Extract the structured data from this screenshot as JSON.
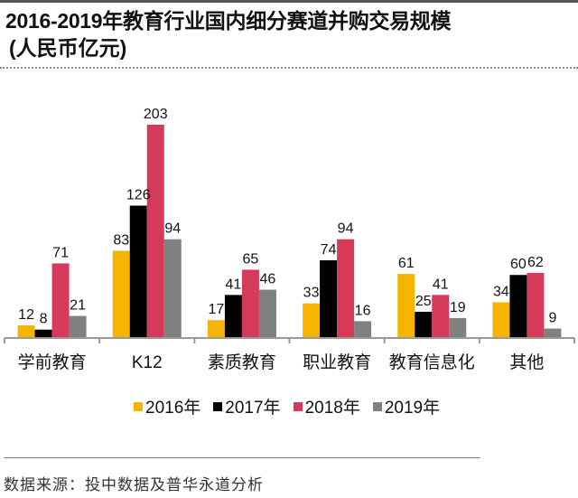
{
  "header": {
    "title": "2016-2019年教育行业国内细分赛道并购交易规模",
    "subtitle": "(人民币亿元)"
  },
  "chart_data": {
    "type": "bar",
    "title": "2016-2019年教育行业国内细分赛道并购交易规模",
    "subtitle": "(人民币亿元)",
    "xlabel": "",
    "ylabel": "",
    "categories": [
      "学前教育",
      "K12",
      "素质教育",
      "职业教育",
      "教育信息化",
      "其他"
    ],
    "series": [
      {
        "name": "2016年",
        "color": "#F5B400",
        "values": [
          12,
          83,
          17,
          33,
          61,
          34
        ]
      },
      {
        "name": "2017年",
        "color": "#000000",
        "values": [
          8,
          126,
          41,
          74,
          25,
          60
        ]
      },
      {
        "name": "2018年",
        "color": "#D63A5A",
        "values": [
          71,
          203,
          65,
          94,
          41,
          62
        ]
      },
      {
        "name": "2019年",
        "color": "#808080",
        "values": [
          21,
          94,
          46,
          16,
          19,
          9
        ]
      }
    ],
    "ylim": [
      0,
      210
    ],
    "grid": false,
    "data_labels": true,
    "legend": "bottom"
  },
  "legend": {
    "items": [
      {
        "label": "2016年",
        "color": "#F5B400"
      },
      {
        "label": "2017年",
        "color": "#000000"
      },
      {
        "label": "2018年",
        "color": "#D63A5A"
      },
      {
        "label": "2019年",
        "color": "#808080"
      }
    ]
  },
  "footer": {
    "source": "数据来源：投中数据及普华永道分析"
  }
}
